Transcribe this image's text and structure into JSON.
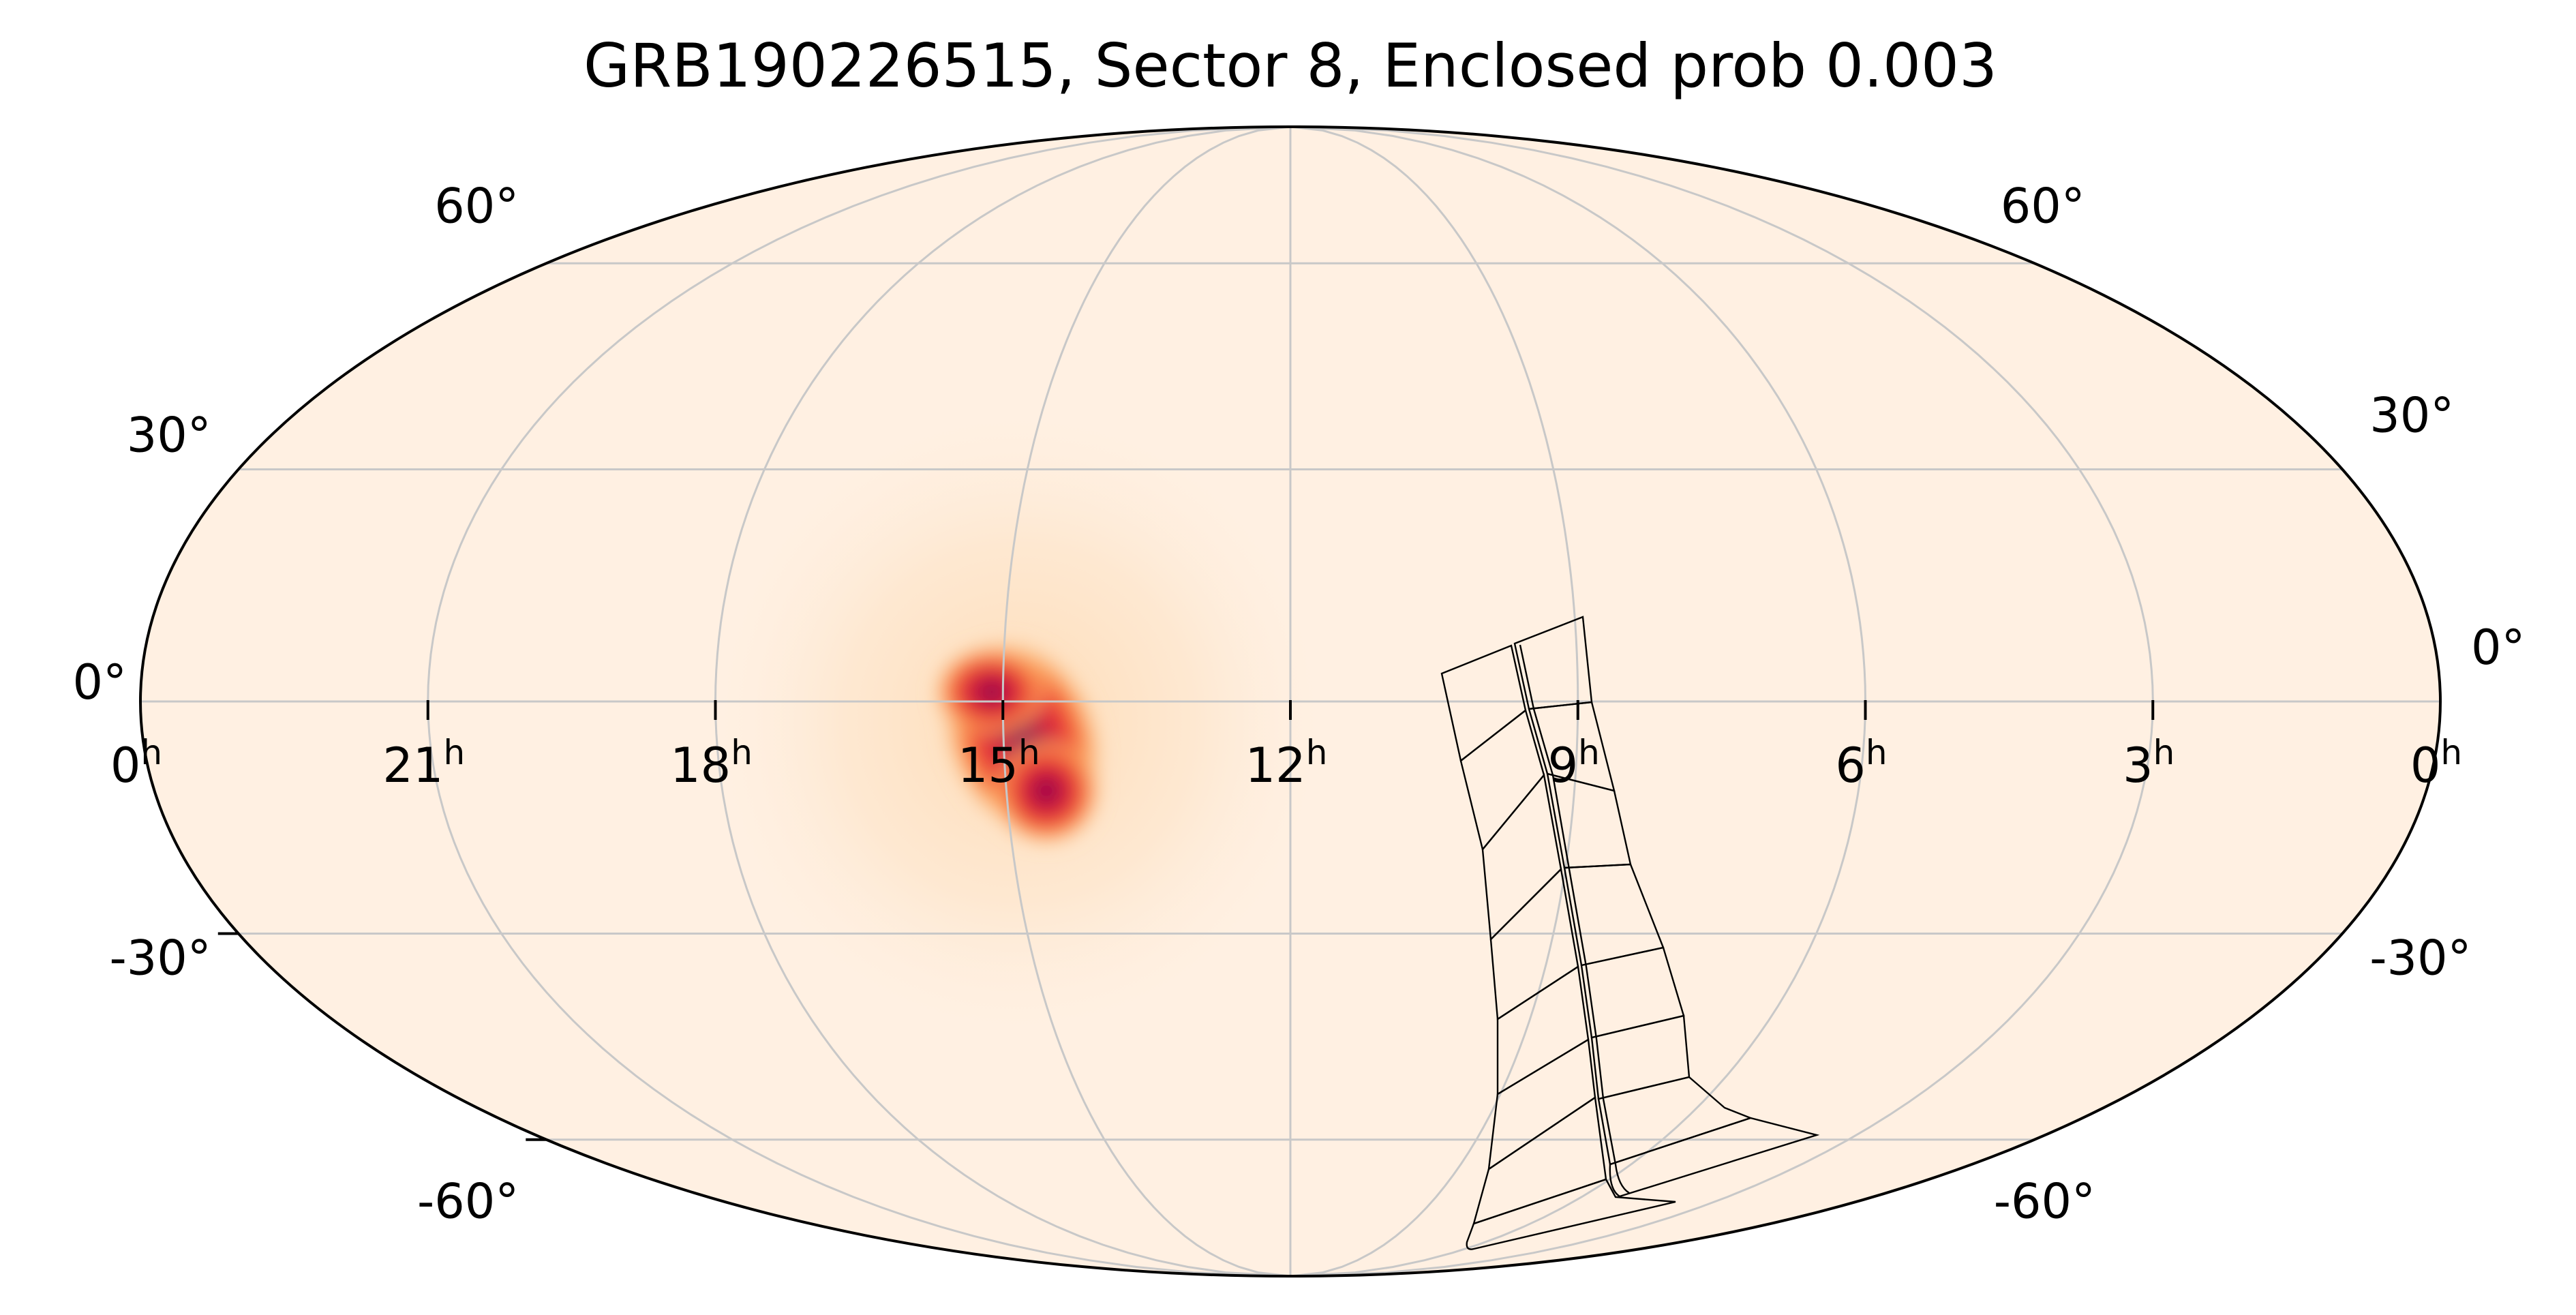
{
  "title": "GRB190226515, Sector 8, Enclosed prob 0.003",
  "map": {
    "projection": "mollweide",
    "ra_tick_labels": [
      {
        "hours": 0,
        "label": "0",
        "sup": "h",
        "side": "left"
      },
      {
        "hours": 21,
        "label": "21",
        "sup": "h"
      },
      {
        "hours": 18,
        "label": "18",
        "sup": "h"
      },
      {
        "hours": 15,
        "label": "15",
        "sup": "h"
      },
      {
        "hours": 12,
        "label": "12",
        "sup": "h"
      },
      {
        "hours": 9,
        "label": "9",
        "sup": "h"
      },
      {
        "hours": 6,
        "label": "6",
        "sup": "h"
      },
      {
        "hours": 3,
        "label": "3",
        "sup": "h"
      },
      {
        "hours": 0,
        "label": "0",
        "sup": "h",
        "side": "right"
      }
    ],
    "dec_tick_labels_left": [
      {
        "dec": 60,
        "label": "60°"
      },
      {
        "dec": 30,
        "label": "30°"
      },
      {
        "dec": 0,
        "label": "0°"
      },
      {
        "dec": -30,
        "label": "-30°"
      },
      {
        "dec": -60,
        "label": "-60°"
      }
    ],
    "dec_tick_labels_right": [
      {
        "dec": 60,
        "label": "60°"
      },
      {
        "dec": 30,
        "label": "30°"
      },
      {
        "dec": 0,
        "label": "0°"
      },
      {
        "dec": -30,
        "label": "-30°"
      },
      {
        "dec": -60,
        "label": "-60°"
      }
    ],
    "background_color": "#fff0e2",
    "grid_color": "#c8c8c8",
    "probability_peak": {
      "ra_hours": 15.0,
      "dec": -7
    },
    "colormap": [
      "#fff0e2",
      "#fdd2a4",
      "#f8843e",
      "#e8213a",
      "#8c0a4f"
    ]
  }
}
